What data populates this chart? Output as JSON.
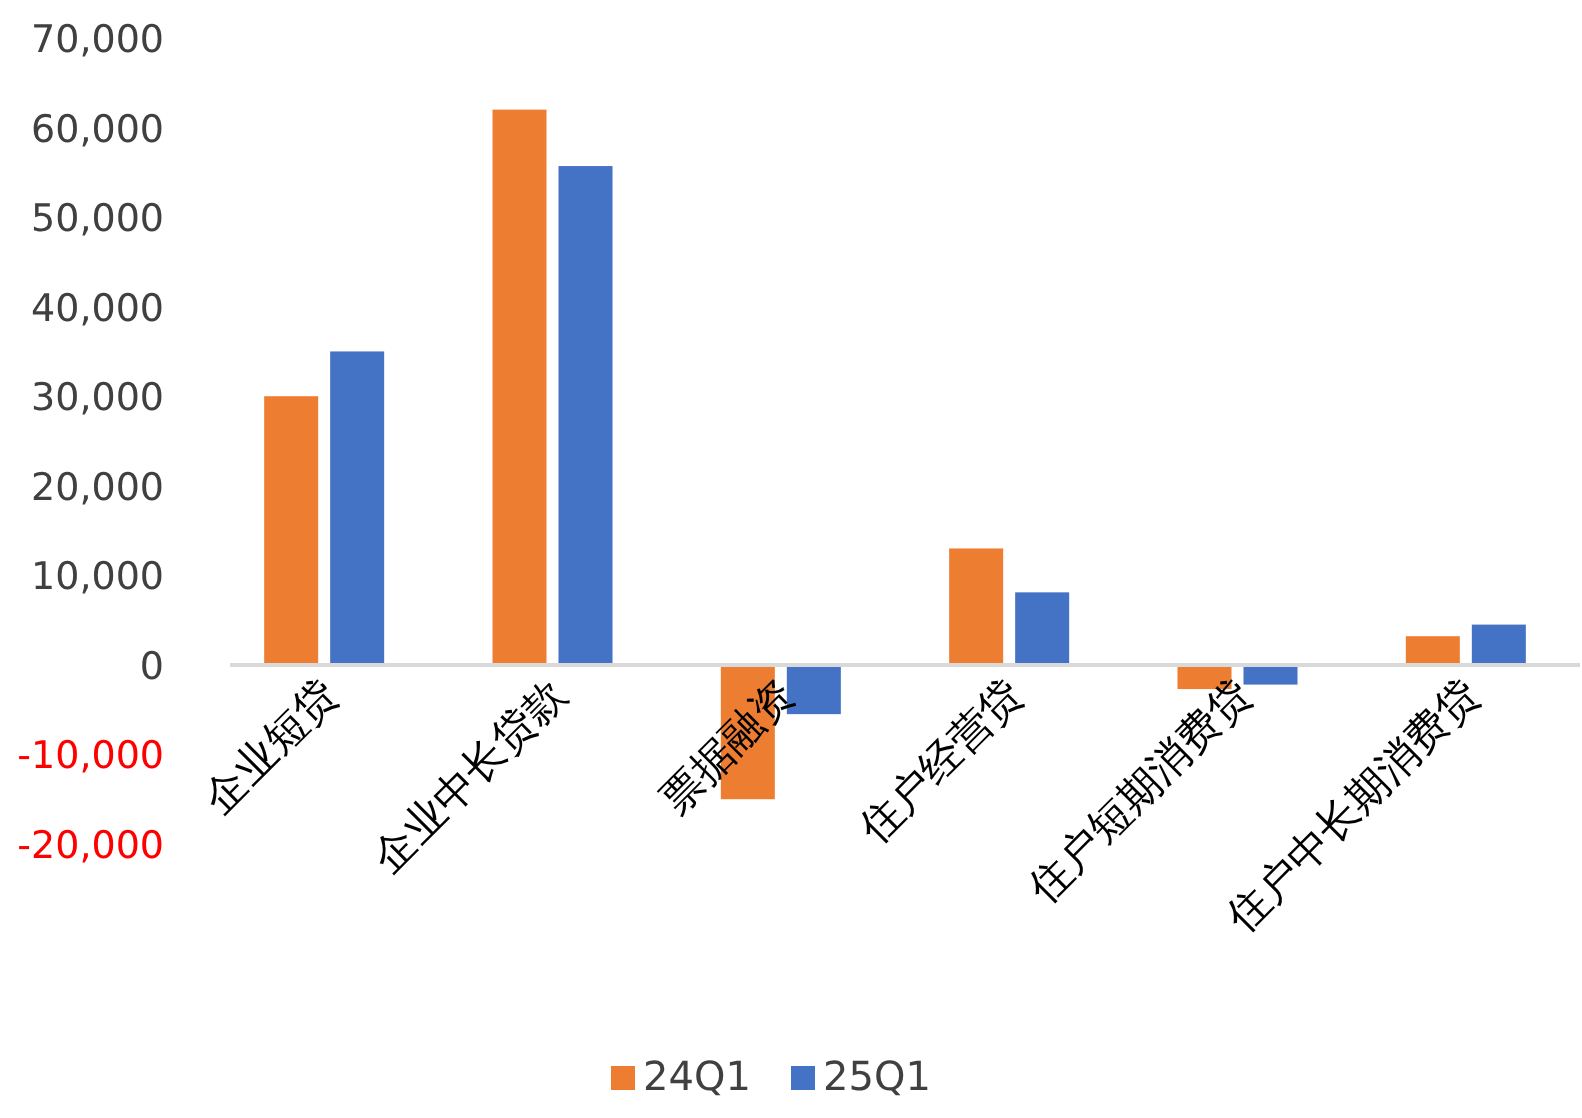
{
  "chart_data": {
    "type": "bar",
    "categories": [
      "企业短贷",
      "企业中长贷款",
      "票据融资",
      "住户经营贷",
      "住户短期消费贷",
      "住户中长期消费贷"
    ],
    "series": [
      {
        "name": "24Q1",
        "color": "#ed7d31",
        "values": [
          30000,
          62000,
          -15000,
          13000,
          -2700,
          3200
        ]
      },
      {
        "name": "25Q1",
        "color": "#4472c4",
        "values": [
          35000,
          55700,
          -5500,
          8100,
          -2200,
          4500
        ]
      }
    ],
    "ylim": [
      -20000,
      70000
    ],
    "yticks": [
      {
        "value": -20000,
        "label": "-20,000"
      },
      {
        "value": -10000,
        "label": "-10,000"
      },
      {
        "value": 0,
        "label": "0"
      },
      {
        "value": 10000,
        "label": "10,000"
      },
      {
        "value": 20000,
        "label": "20,000"
      },
      {
        "value": 30000,
        "label": "30,000"
      },
      {
        "value": 40000,
        "label": "40,000"
      },
      {
        "value": 50000,
        "label": "50,000"
      },
      {
        "value": 60000,
        "label": "60,000"
      },
      {
        "value": 70000,
        "label": "70,000"
      }
    ],
    "grid": false,
    "legend": "bottom"
  }
}
